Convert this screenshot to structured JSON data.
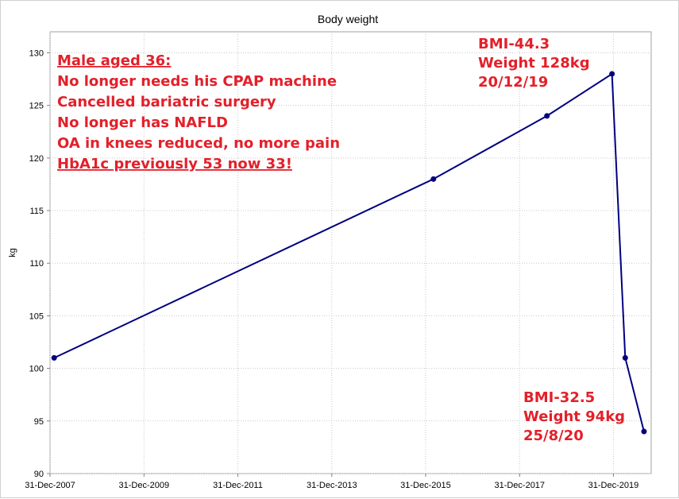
{
  "chart_data": {
    "type": "line",
    "title": "Body weight",
    "xlabel": "",
    "ylabel": "kg",
    "x_ticks": [
      "31-Dec-2007",
      "31-Dec-2009",
      "31-Dec-2011",
      "31-Dec-2013",
      "31-Dec-2015",
      "31-Dec-2017",
      "31-Dec-2019"
    ],
    "y_ticks": [
      90,
      95,
      100,
      105,
      110,
      115,
      120,
      125,
      130
    ],
    "xlim": [
      "2007-12-31",
      "2020-10-20"
    ],
    "ylim": [
      90,
      132
    ],
    "grid": true,
    "line_color": "#000080",
    "series": [
      {
        "points": [
          {
            "x": "2008-02-01",
            "y": 101
          },
          {
            "x": "2016-03-01",
            "y": 118
          },
          {
            "x": "2018-08-01",
            "y": 124
          },
          {
            "x": "2019-12-20",
            "y": 128
          },
          {
            "x": "2020-04-01",
            "y": 101
          },
          {
            "x": "2020-08-25",
            "y": 94
          }
        ]
      }
    ],
    "annotations": {
      "note_lines": [
        "Male aged 36:",
        "No longer needs his CPAP machine",
        "Cancelled bariatric surgery",
        "No longer has NAFLD",
        "OA in knees reduced, no more pain",
        "HbA1c previously 53 now 33!"
      ],
      "peak_lines": [
        "BMI-44.3",
        "Weight 128kg",
        "20/12/19"
      ],
      "end_lines": [
        "BMI-32.5",
        "Weight 94kg",
        "25/8/20"
      ],
      "color": "#e3202a"
    }
  }
}
